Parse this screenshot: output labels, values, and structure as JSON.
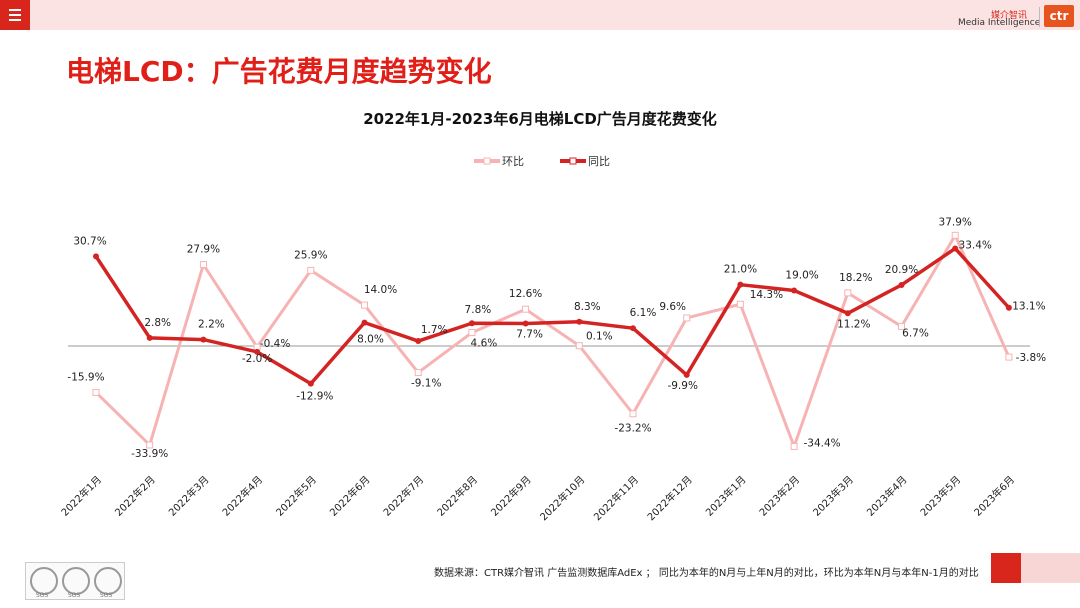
{
  "header": {
    "menu_icon": "hamburger-menu-icon",
    "logo_cn": "媒介智讯",
    "logo_en": "Media Intelligence",
    "logo_mark": "ctr",
    "brand_color": "#d9261c"
  },
  "page_title": "电梯LCD：广告花费月度趋势变化",
  "footer": {
    "source": "数据来源：CTR媒介智讯 广告监测数据库AdEx ； 同比为本年的N月与上年N月的对比，环比为本年N月与本年N-1月的对比",
    "badge_labels": [
      "SGS",
      "SGS",
      "SGS"
    ]
  },
  "chart_data": {
    "type": "line",
    "title": "2022年1月-2023年6月电梯LCD广告月度花费变化",
    "categories": [
      "2022年1月",
      "2022年2月",
      "2022年3月",
      "2022年4月",
      "2022年5月",
      "2022年6月",
      "2022年7月",
      "2022年8月",
      "2022年9月",
      "2022年10月",
      "2022年11月",
      "2022年12月",
      "2023年1月",
      "2023年2月",
      "2023年3月",
      "2023年4月",
      "2023年5月",
      "2023年6月"
    ],
    "legend_position": "top-center",
    "unit": "%",
    "series": [
      {
        "name": "环比",
        "color": "#f7b3b3",
        "values": [
          -15.9,
          -33.9,
          27.9,
          -0.4,
          25.9,
          14.0,
          -9.1,
          4.6,
          12.6,
          0.1,
          -23.2,
          9.6,
          14.3,
          -34.4,
          18.2,
          6.7,
          37.9,
          -3.8
        ],
        "labels": [
          "-15.9%",
          "-33.9%",
          "27.9%",
          "-0.4%",
          "25.9%",
          "14.0%",
          "-9.1%",
          "4.6%",
          "12.6%",
          "0.1%",
          "-23.2%",
          "9.6%",
          "14.3%",
          "-34.4%",
          "18.2%",
          "6.7%",
          "37.9%",
          "-3.8%"
        ]
      },
      {
        "name": "同比",
        "color": "#d42323",
        "values": [
          30.7,
          2.8,
          2.2,
          -2.0,
          -12.9,
          8.0,
          1.7,
          7.8,
          7.7,
          8.3,
          6.1,
          -9.9,
          21.0,
          19.0,
          11.2,
          20.9,
          33.4,
          13.1
        ],
        "labels": [
          "30.7%",
          "2.8%",
          "2.2%",
          "-2.0%",
          "-12.9%",
          "8.0%",
          "1.7%",
          "7.8%",
          "7.7%",
          "8.3%",
          "6.1%",
          "-9.9%",
          "21.0%",
          "19.0%",
          "11.2%",
          "20.9%",
          "33.4%",
          "13.1%"
        ]
      }
    ],
    "grid": false,
    "zero_line": true
  }
}
